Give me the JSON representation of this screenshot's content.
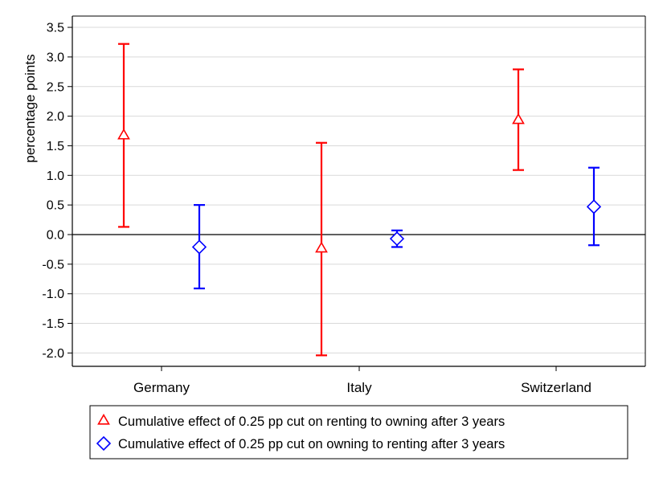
{
  "chart_data": {
    "type": "scatter",
    "title": "",
    "ylabel": "percentage points",
    "xlabel": "",
    "ylim": [
      -2.2,
      3.7
    ],
    "yticks": [
      "3.5",
      "3.0",
      "2.5",
      "2.0",
      "1.5",
      "1.0",
      "0.5",
      "0.0",
      "-0.5",
      "-1.0",
      "-1.5",
      "-2.0"
    ],
    "categories": [
      "Germany",
      "Italy",
      "Switzerland"
    ],
    "grid": true,
    "legend_position": "bottom",
    "series": [
      {
        "name": "Cumulative effect of 0.25 pp cut on renting to owning after 3 years",
        "marker": "triangle",
        "color": "#ff0000",
        "points": [
          {
            "category": "Germany",
            "estimate": 1.67,
            "ci_low": 0.13,
            "ci_high": 3.22
          },
          {
            "category": "Italy",
            "estimate": -0.24,
            "ci_low": -2.04,
            "ci_high": 1.55
          },
          {
            "category": "Switzerland",
            "estimate": 1.93,
            "ci_low": 1.09,
            "ci_high": 2.79
          }
        ]
      },
      {
        "name": "Cumulative effect of 0.25 pp cut on owning to renting after 3 years",
        "marker": "diamond",
        "color": "#0000ff",
        "points": [
          {
            "category": "Germany",
            "estimate": -0.21,
            "ci_low": -0.91,
            "ci_high": 0.5
          },
          {
            "category": "Italy",
            "estimate": -0.07,
            "ci_low": -0.21,
            "ci_high": 0.07
          },
          {
            "category": "Switzerland",
            "estimate": 0.47,
            "ci_low": -0.18,
            "ci_high": 1.13
          }
        ]
      }
    ]
  }
}
